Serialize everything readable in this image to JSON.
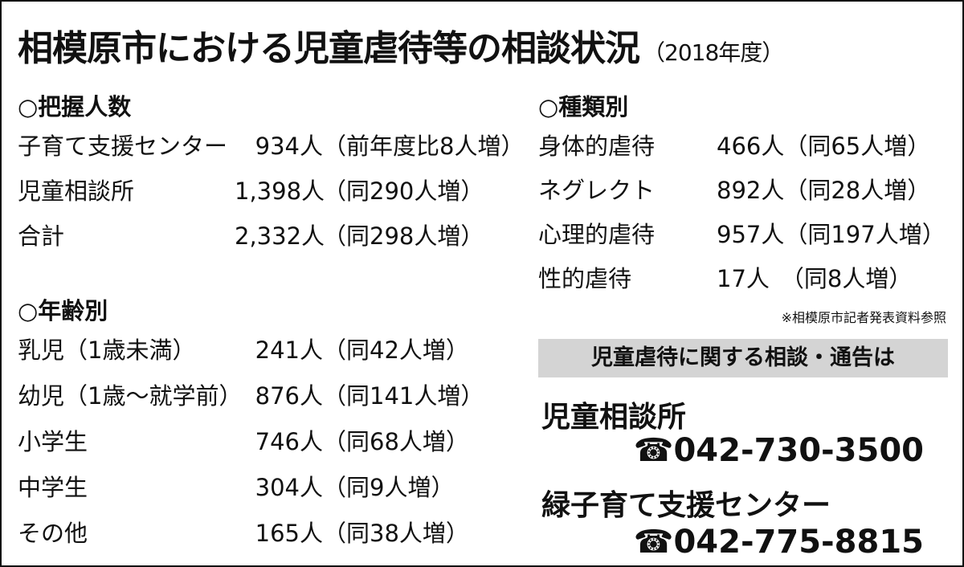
{
  "title": "相模原市における児童虐待等の相談状況",
  "subtitle": "（2018年度）",
  "count_section": {
    "heading": "○把握人数",
    "rows": [
      [
        "子育て支援センター",
        "934人",
        "（前年度比8人増）"
      ],
      [
        "児童相談所",
        "1,398人",
        "（同290人増）"
      ],
      [
        "合計",
        "2,332人",
        "（同298人増）"
      ]
    ]
  },
  "age_section": {
    "heading": "○年齢別",
    "rows": [
      [
        "乳児（1歳未満）",
        "241人",
        "（同42人増）"
      ],
      [
        "幼児（1歳〜就学前）",
        "876人",
        "（同141人増）"
      ],
      [
        "小学生",
        "746人",
        "（同68人増）"
      ],
      [
        "中学生",
        "304人",
        "（同9人増）"
      ],
      [
        "その他",
        "165人",
        "（同38人増）"
      ]
    ]
  },
  "type_section": {
    "heading": "○種類別",
    "rows": [
      [
        "身体的虐待",
        "466人",
        "（同65人増）"
      ],
      [
        "ネグレクト",
        "892人",
        "（同28人増）"
      ],
      [
        "心理的虐待",
        "957人",
        "（同197人増）"
      ],
      [
        "性的虐待",
        "17人",
        "（同8人増）"
      ]
    ]
  },
  "source": "※相模原市記者発表資料参照",
  "banner": "児童虐待に関する相談・通告は",
  "contacts": [
    {
      "name": "児童相談所",
      "phone": "☎042-730-3500"
    },
    {
      "name": "緑子育て支援センター",
      "phone": "☎042-775-8815"
    }
  ]
}
